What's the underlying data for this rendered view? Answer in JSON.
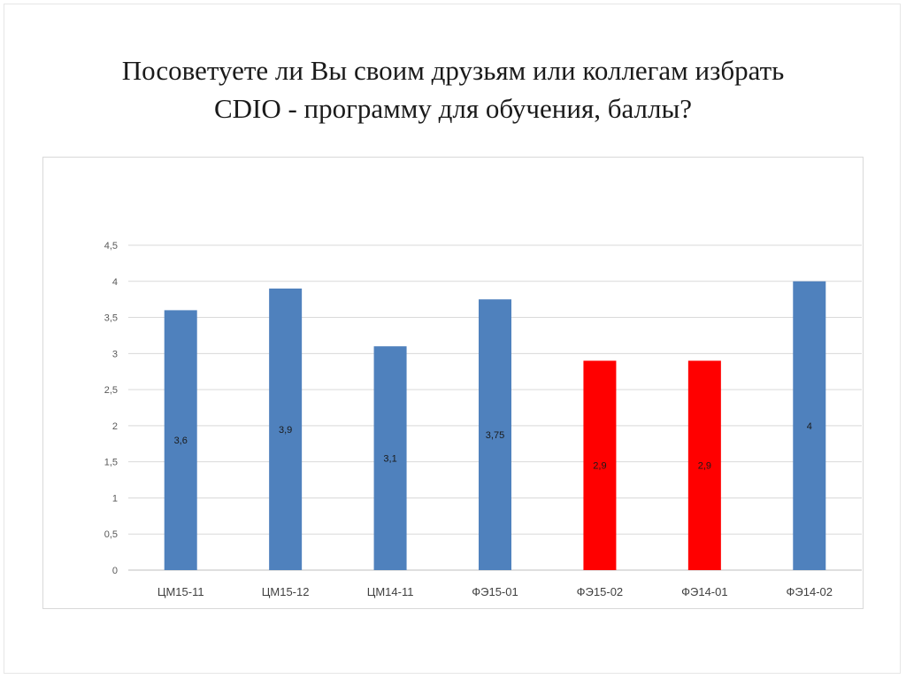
{
  "slide": {
    "title_line1": "Посоветуете ли Вы своим друзьям или коллегам избрать",
    "title_line2": "CDIO - программу для обучения, баллы?"
  },
  "chart_data": {
    "type": "bar",
    "categories": [
      "ЦМ15-11",
      "ЦМ15-12",
      "ЦМ14-11",
      "ФЭ15-01",
      "ФЭ15-02",
      "ФЭ14-01",
      "ФЭ14-02"
    ],
    "values": [
      3.6,
      3.9,
      3.1,
      3.75,
      2.9,
      2.9,
      4
    ],
    "data_labels": [
      "3,6",
      "3,9",
      "3,1",
      "3,75",
      "2,9",
      "2,9",
      "4"
    ],
    "bar_colors": [
      "#4f81bd",
      "#4f81bd",
      "#4f81bd",
      "#4f81bd",
      "#ff0000",
      "#ff0000",
      "#4f81bd"
    ],
    "ylim": [
      0,
      4.5
    ],
    "yticks": [
      0,
      0.5,
      1,
      1.5,
      2,
      2.5,
      3,
      3.5,
      4,
      4.5
    ],
    "ytick_labels": [
      "0",
      "0,5",
      "1",
      "1,5",
      "2",
      "2,5",
      "3",
      "3,5",
      "4",
      "4,5"
    ],
    "grid": true,
    "legend": "none",
    "title": "",
    "xlabel": "",
    "ylabel": ""
  }
}
